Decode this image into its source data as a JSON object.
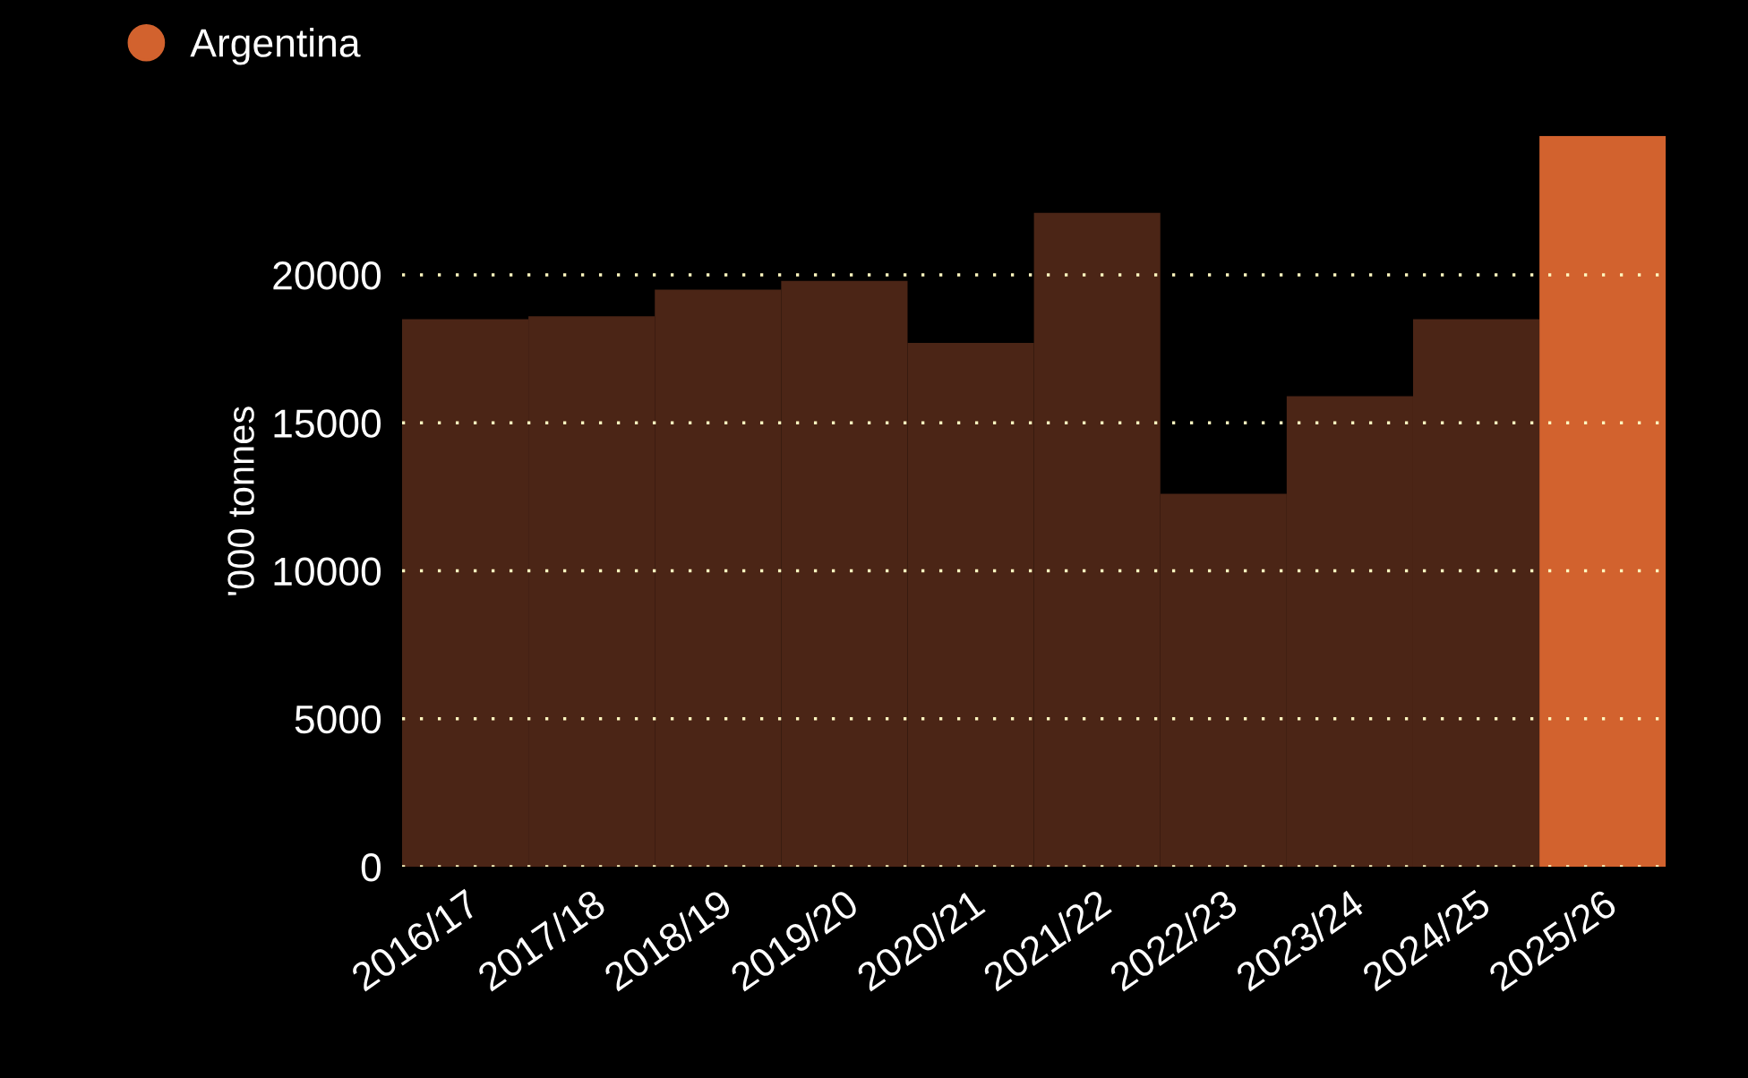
{
  "chart_data": {
    "type": "bar",
    "ylabel": "'000 tonnes",
    "categories": [
      "2016/17",
      "2017/18",
      "2018/19",
      "2019/20",
      "2020/21",
      "2021/22",
      "2022/23",
      "2023/24",
      "2024/25",
      "2025/26"
    ],
    "series": [
      {
        "name": "Argentina",
        "color": "#d2622e",
        "colors": [
          "#4b2516",
          "#4b2516",
          "#4b2516",
          "#4b2516",
          "#4b2516",
          "#4b2516",
          "#4b2516",
          "#4b2516",
          "#4b2516",
          "#d2622e"
        ],
        "values": [
          18500,
          18600,
          19500,
          19800,
          17700,
          22100,
          12600,
          15900,
          18500,
          24700
        ]
      }
    ],
    "ylim": [
      0,
      24700
    ],
    "yticks": [
      0,
      5000,
      10000,
      15000,
      20000
    ],
    "grid": "y",
    "legend": "top left"
  }
}
